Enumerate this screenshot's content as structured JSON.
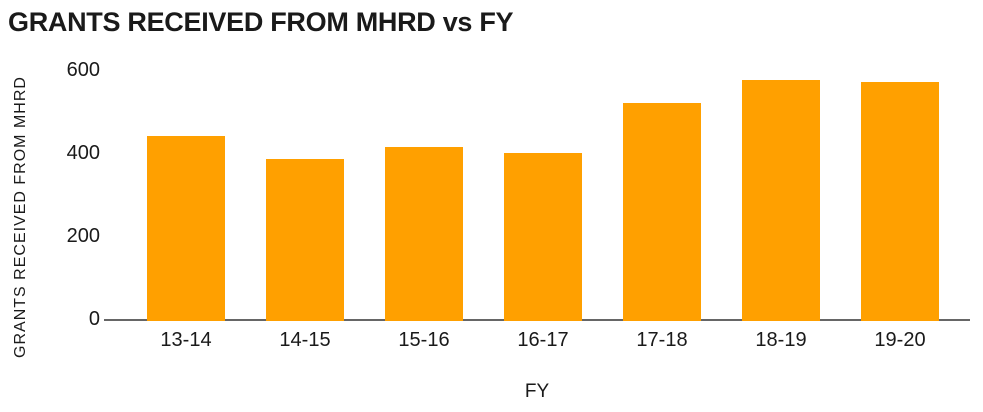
{
  "chart_data": {
    "type": "bar",
    "title": "GRANTS RECEIVED FROM MHRD vs FY",
    "xlabel": "FY",
    "ylabel": "GRANTS RECEIVED FROM MHRD",
    "categories": [
      "13-14",
      "14-15",
      "15-16",
      "16-17",
      "17-18",
      "18-19",
      "19-20"
    ],
    "values": [
      445,
      390,
      420,
      405,
      525,
      580,
      575
    ],
    "ylim": [
      0,
      600
    ],
    "yticks": [
      0,
      200,
      400,
      600
    ],
    "bar_color": "#FFA000",
    "axis_line_color": "#666666",
    "text_color": "#1a1a1a",
    "background_color": "#ffffff",
    "grid": false,
    "legend": false
  }
}
